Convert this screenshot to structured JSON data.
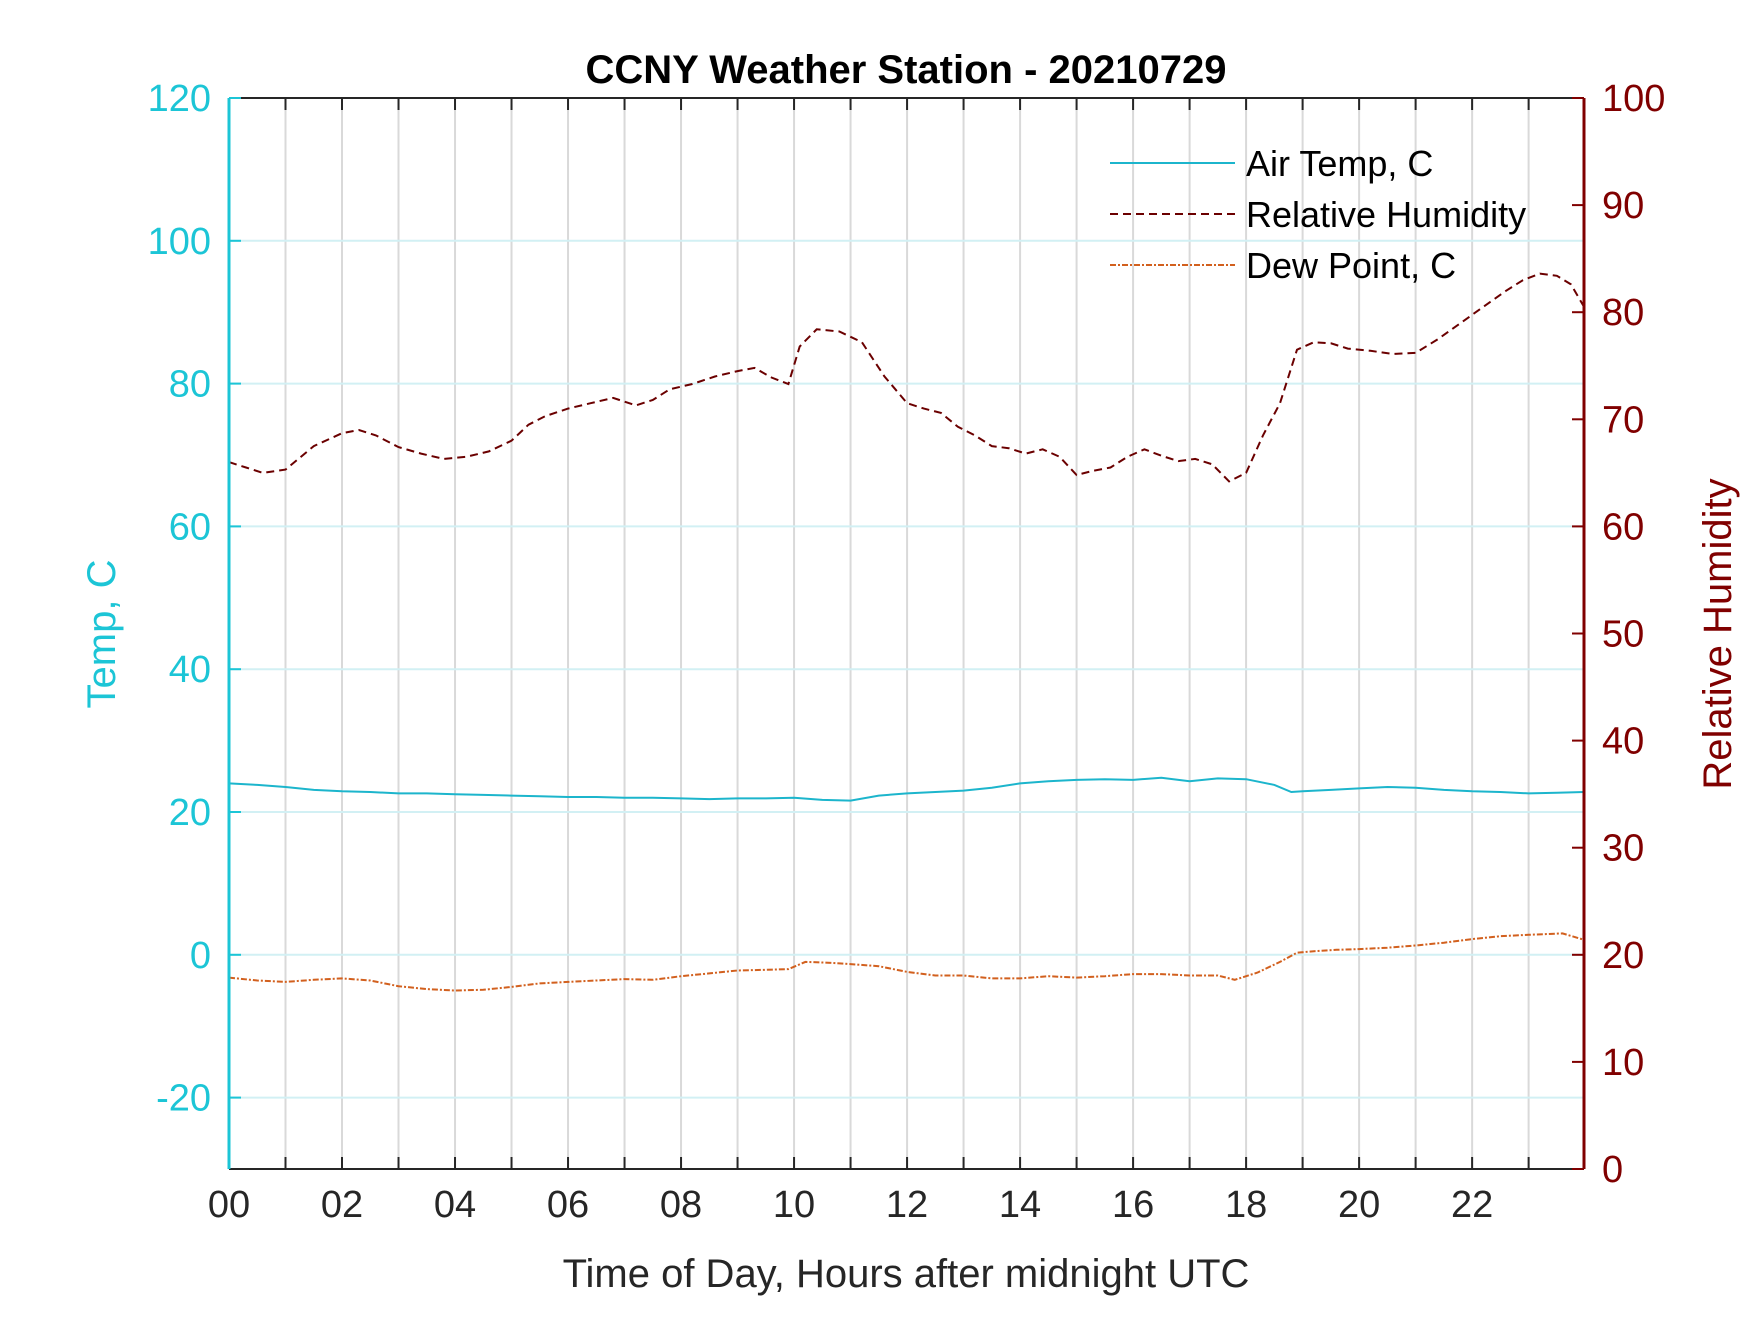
{
  "chart_data": {
    "type": "line",
    "title": "CCNY Weather Station - 20210729",
    "xlabel": "Time of Day, Hours after midnight UTC",
    "ylabel_left": "Temp, C",
    "ylabel_right": "Relative Humidity",
    "xlim": [
      0,
      23.98
    ],
    "ylim_left": [
      -30,
      120
    ],
    "ylim_right": [
      0,
      100
    ],
    "x_ticks": [
      0,
      2,
      4,
      6,
      8,
      10,
      12,
      14,
      16,
      18,
      20,
      22
    ],
    "x_tick_labels": [
      "00",
      "02",
      "04",
      "06",
      "08",
      "10",
      "12",
      "14",
      "16",
      "18",
      "20",
      "22"
    ],
    "y_ticks_left": [
      -20,
      0,
      20,
      40,
      60,
      80,
      100,
      120
    ],
    "y_ticks_right": [
      0,
      10,
      20,
      30,
      40,
      50,
      60,
      70,
      80,
      90,
      100
    ],
    "grid": true,
    "legend_position": "top-right",
    "colors": {
      "left_axis": "#1cc5d6",
      "right_axis": "#800000",
      "air_temp": "#1cb5cc",
      "humidity": "#6b0000",
      "dew_point": "#d2601e"
    },
    "series": [
      {
        "name": "Air Temp, C",
        "axis": "left",
        "style": "solid",
        "x": [
          0,
          0.5,
          1,
          1.5,
          2,
          2.5,
          3,
          3.5,
          4,
          4.5,
          5,
          5.5,
          6,
          6.5,
          7,
          7.5,
          8,
          8.5,
          9,
          9.5,
          10,
          10.5,
          11,
          11.5,
          12,
          12.5,
          13,
          13.5,
          14,
          14.5,
          15,
          15.5,
          16,
          16.5,
          17,
          17.5,
          18,
          18.5,
          18.8,
          19,
          19.5,
          20,
          20.5,
          21,
          21.5,
          22,
          22.5,
          23,
          23.5,
          23.98
        ],
        "y": [
          24,
          23.8,
          23.5,
          23.1,
          22.9,
          22.8,
          22.6,
          22.6,
          22.5,
          22.4,
          22.3,
          22.2,
          22.1,
          22.1,
          22.0,
          22.0,
          21.9,
          21.8,
          21.9,
          21.9,
          22.0,
          21.7,
          21.6,
          22.3,
          22.6,
          22.8,
          23.0,
          23.4,
          24.0,
          24.3,
          24.5,
          24.6,
          24.5,
          24.8,
          24.3,
          24.7,
          24.6,
          23.8,
          22.8,
          22.9,
          23.1,
          23.3,
          23.5,
          23.4,
          23.1,
          22.9,
          22.8,
          22.6,
          22.7,
          22.8
        ]
      },
      {
        "name": "Relative Humidity",
        "axis": "right",
        "style": "dashed",
        "x": [
          0,
          0.3,
          0.6,
          1,
          1.5,
          2,
          2.3,
          2.6,
          3,
          3.4,
          3.8,
          4.2,
          4.6,
          5,
          5.3,
          5.6,
          6,
          6.4,
          6.8,
          7.2,
          7.5,
          7.8,
          8.2,
          8.6,
          9,
          9.3,
          9.6,
          9.9,
          10.1,
          10.4,
          10.8,
          11.2,
          11.6,
          12,
          12.3,
          12.6,
          12.9,
          13.2,
          13.5,
          13.8,
          14.1,
          14.4,
          14.7,
          15,
          15.3,
          15.6,
          15.9,
          16.2,
          16.5,
          16.8,
          17.1,
          17.4,
          17.7,
          18,
          18.3,
          18.6,
          18.9,
          19.2,
          19.5,
          19.8,
          20.2,
          20.6,
          21,
          21.4,
          21.8,
          22.2,
          22.6,
          22.9,
          23.2,
          23.5,
          23.75,
          23.98
        ],
        "y": [
          66,
          65.5,
          65,
          65.3,
          67.5,
          68.7,
          69,
          68.5,
          67.4,
          66.8,
          66.3,
          66.5,
          67,
          68,
          69.5,
          70.3,
          71,
          71.5,
          72,
          71.3,
          71.8,
          72.8,
          73.3,
          74,
          74.5,
          74.8,
          73.9,
          73.3,
          76.8,
          78.4,
          78.2,
          77.2,
          74,
          71.5,
          71,
          70.6,
          69.3,
          68.5,
          67.5,
          67.3,
          66.8,
          67.2,
          66.5,
          64.8,
          65.2,
          65.5,
          66.5,
          67.2,
          66.6,
          66.1,
          66.3,
          65.8,
          64.2,
          65,
          68.5,
          71.5,
          76.5,
          77.2,
          77.1,
          76.6,
          76.4,
          76.1,
          76.2,
          77.5,
          79,
          80.5,
          82,
          83,
          83.6,
          83.4,
          82.6,
          80.5
        ]
      },
      {
        "name": "Dew Point, C",
        "axis": "left",
        "style": "dashdot",
        "x": [
          0,
          0.5,
          1,
          1.5,
          2,
          2.5,
          3,
          3.5,
          4,
          4.5,
          5,
          5.5,
          6,
          6.5,
          7,
          7.5,
          8,
          8.5,
          9,
          9.5,
          9.9,
          10.2,
          10.6,
          11,
          11.5,
          12,
          12.5,
          13,
          13.5,
          14,
          14.5,
          15,
          15.5,
          16,
          16.5,
          17,
          17.5,
          17.8,
          18.2,
          18.6,
          18.9,
          19.2,
          19.6,
          20,
          20.5,
          21,
          21.5,
          22,
          22.5,
          23,
          23.3,
          23.6,
          23.98
        ],
        "y": [
          -3.2,
          -3.6,
          -3.8,
          -3.5,
          -3.3,
          -3.6,
          -4.4,
          -4.8,
          -5.0,
          -4.9,
          -4.5,
          -4.0,
          -3.8,
          -3.6,
          -3.4,
          -3.5,
          -3.0,
          -2.6,
          -2.2,
          -2.1,
          -2.0,
          -1.0,
          -1.1,
          -1.3,
          -1.6,
          -2.4,
          -2.9,
          -2.9,
          -3.3,
          -3.3,
          -3.0,
          -3.2,
          -3.0,
          -2.7,
          -2.7,
          -2.9,
          -2.9,
          -3.5,
          -2.5,
          -1.0,
          0.3,
          0.5,
          0.7,
          0.8,
          1.0,
          1.3,
          1.7,
          2.2,
          2.6,
          2.8,
          2.9,
          3.0,
          2.1
        ]
      }
    ]
  }
}
